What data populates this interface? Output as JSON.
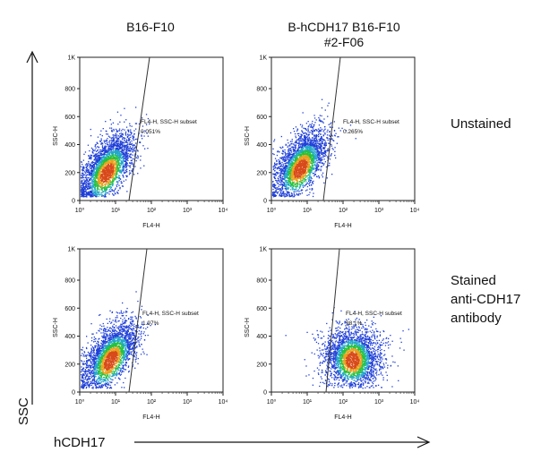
{
  "columns": [
    "B16-F10",
    "B-hCDH17 B16-F10\n#2-F06"
  ],
  "rows": [
    "Unstained",
    "Stained\nanti-CDH17\nantibody"
  ],
  "y_axis_label": "SSC",
  "x_axis_label": "hCDH17",
  "colors": {
    "density_low": "#1f3fd8",
    "density_mid": "#24c23c",
    "density_high": "#d84a1a",
    "gate_line": "#333333"
  },
  "chart_data": [
    {
      "type": "scatter",
      "xlabel": "FL4-H",
      "ylabel": "SSC-H",
      "x_ticks": [
        "10⁰",
        "10¹",
        "10²",
        "10³",
        "10⁴"
      ],
      "y_ticks": [
        "0",
        "200",
        "400",
        "600",
        "800",
        "1K"
      ],
      "xlim": [
        1,
        10000
      ],
      "ylim": [
        0,
        1024
      ],
      "x_scale": "log",
      "gate_label": "FL4-H, SSC-H subset",
      "gate_value": "0.051%",
      "population": {
        "center_log_x": 0.75,
        "center_y": 200
      }
    },
    {
      "type": "scatter",
      "xlabel": "FL4-H",
      "ylabel": "SSC-H",
      "x_ticks": [
        "10⁰",
        "10¹",
        "10²",
        "10³",
        "10⁴"
      ],
      "y_ticks": [
        "0",
        "200",
        "400",
        "600",
        "800",
        "1K"
      ],
      "xlim": [
        1,
        10000
      ],
      "ylim": [
        0,
        1024
      ],
      "x_scale": "log",
      "gate_label": "FL4-H, SSC-H subset",
      "gate_value": "0.265%",
      "population": {
        "center_log_x": 0.8,
        "center_y": 230
      }
    },
    {
      "type": "scatter",
      "xlabel": "FL4-H",
      "ylabel": "SSC-H",
      "x_ticks": [
        "10⁰",
        "10¹",
        "10²",
        "10³",
        "10⁴"
      ],
      "y_ticks": [
        "0",
        "200",
        "400",
        "600",
        "800",
        "1K"
      ],
      "xlim": [
        1,
        10000
      ],
      "ylim": [
        0,
        1024
      ],
      "x_scale": "log",
      "gate_label": "FL4-H, SSC-H subset",
      "gate_value": "1.97%",
      "population": {
        "center_log_x": 0.85,
        "center_y": 230
      }
    },
    {
      "type": "scatter",
      "xlabel": "FL4-H",
      "ylabel": "SSC-H",
      "x_ticks": [
        "10⁰",
        "10¹",
        "10²",
        "10³",
        "10⁴"
      ],
      "y_ticks": [
        "0",
        "200",
        "400",
        "600",
        "800",
        "1K"
      ],
      "xlim": [
        1,
        10000
      ],
      "ylim": [
        0,
        1024
      ],
      "x_scale": "log",
      "gate_label": "FL4-H, SSC-H subset",
      "gate_value": "98.1%",
      "population": {
        "center_log_x": 2.25,
        "center_y": 230
      }
    }
  ]
}
